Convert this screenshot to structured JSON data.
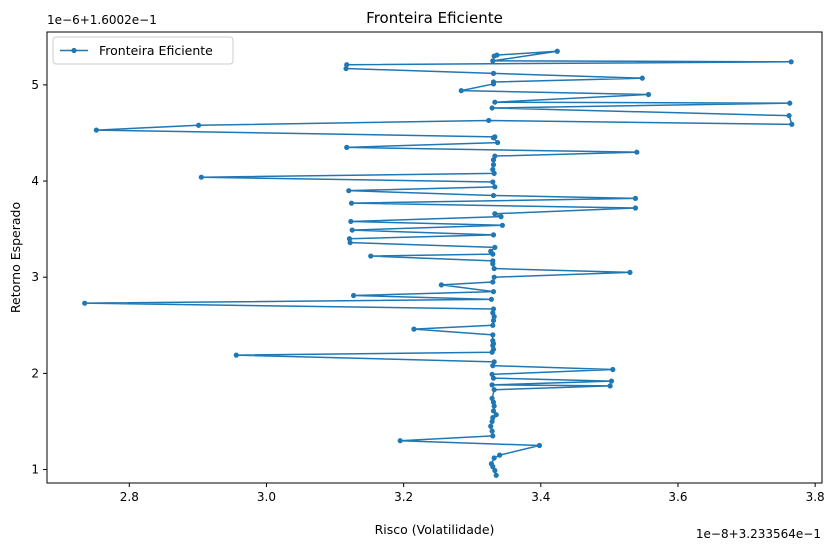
{
  "chart_data": {
    "type": "line",
    "title": "Fronteira Eficiente",
    "xlabel": "Risco (Volatilidade)",
    "ylabel": "Retorno Esperado",
    "x_offset_text": "1e−8+3.233564e−1",
    "y_offset_text": "1e−6+1.6002e−1",
    "xlim": [
      2.68,
      3.81
    ],
    "ylim": [
      0.86,
      5.55
    ],
    "x_ticks": [
      2.8,
      3.0,
      3.2,
      3.4,
      3.6,
      3.8
    ],
    "x_tick_labels": [
      "2.8",
      "3.0",
      "3.2",
      "3.4",
      "3.6",
      "3.8"
    ],
    "y_ticks": [
      1,
      2,
      3,
      4,
      5
    ],
    "y_tick_labels": [
      "1",
      "2",
      "3",
      "4",
      "5"
    ],
    "legend": {
      "position": "upper left"
    },
    "color": "#1f77b4",
    "series": [
      {
        "name": "Fronteira Eficiente",
        "marker": "circle",
        "points": [
          [
            3.335,
            0.94
          ],
          [
            3.333,
            0.99
          ],
          [
            3.33,
            1.03
          ],
          [
            3.328,
            1.06
          ],
          [
            3.332,
            1.12
          ],
          [
            3.34,
            1.15
          ],
          [
            3.398,
            1.25
          ],
          [
            3.195,
            1.3
          ],
          [
            3.33,
            1.35
          ],
          [
            3.329,
            1.4
          ],
          [
            3.327,
            1.45
          ],
          [
            3.329,
            1.5
          ],
          [
            3.33,
            1.54
          ],
          [
            3.335,
            1.57
          ],
          [
            3.331,
            1.61
          ],
          [
            3.332,
            1.66
          ],
          [
            3.331,
            1.7
          ],
          [
            3.329,
            1.74
          ],
          [
            3.332,
            1.83
          ],
          [
            3.501,
            1.87
          ],
          [
            3.329,
            1.88
          ],
          [
            3.503,
            1.92
          ],
          [
            3.331,
            1.95
          ],
          [
            3.329,
            1.99
          ],
          [
            3.505,
            2.04
          ],
          [
            3.33,
            2.08
          ],
          [
            3.332,
            2.12
          ],
          [
            2.956,
            2.19
          ],
          [
            3.329,
            2.22
          ],
          [
            3.331,
            2.25
          ],
          [
            3.33,
            2.29
          ],
          [
            3.331,
            2.31
          ],
          [
            3.33,
            2.34
          ],
          [
            3.33,
            2.4
          ],
          [
            3.215,
            2.46
          ],
          [
            3.33,
            2.5
          ],
          [
            3.331,
            2.55
          ],
          [
            3.332,
            2.59
          ],
          [
            3.33,
            2.63
          ],
          [
            3.331,
            2.67
          ],
          [
            2.735,
            2.73
          ],
          [
            3.328,
            2.77
          ],
          [
            3.127,
            2.81
          ],
          [
            3.331,
            2.85
          ],
          [
            3.255,
            2.92
          ],
          [
            3.33,
            2.95
          ],
          [
            3.332,
            3.0
          ],
          [
            3.53,
            3.05
          ],
          [
            3.332,
            3.09
          ],
          [
            3.33,
            3.14
          ],
          [
            3.33,
            3.17
          ],
          [
            3.152,
            3.22
          ],
          [
            3.33,
            3.24
          ],
          [
            3.327,
            3.27
          ],
          [
            3.333,
            3.31
          ],
          [
            3.122,
            3.36
          ],
          [
            3.121,
            3.4
          ],
          [
            3.331,
            3.44
          ],
          [
            3.125,
            3.49
          ],
          [
            3.344,
            3.54
          ],
          [
            3.123,
            3.58
          ],
          [
            3.342,
            3.63
          ],
          [
            3.333,
            3.66
          ],
          [
            3.538,
            3.72
          ],
          [
            3.124,
            3.77
          ],
          [
            3.538,
            3.82
          ],
          [
            3.331,
            3.85
          ],
          [
            3.12,
            3.9
          ],
          [
            3.333,
            3.94
          ],
          [
            3.33,
            3.99
          ],
          [
            2.905,
            4.04
          ],
          [
            3.332,
            4.08
          ],
          [
            3.33,
            4.12
          ],
          [
            3.331,
            4.17
          ],
          [
            3.331,
            4.22
          ],
          [
            3.333,
            4.26
          ],
          [
            3.54,
            4.3
          ],
          [
            3.117,
            4.35
          ],
          [
            3.337,
            4.4
          ],
          [
            3.331,
            4.45
          ],
          [
            3.333,
            4.46
          ],
          [
            2.752,
            4.53
          ],
          [
            2.901,
            4.58
          ],
          [
            3.324,
            4.63
          ],
          [
            3.766,
            4.59
          ],
          [
            3.762,
            4.68
          ],
          [
            3.329,
            4.76
          ],
          [
            3.763,
            4.81
          ],
          [
            3.333,
            4.82
          ],
          [
            3.557,
            4.9
          ],
          [
            3.284,
            4.94
          ],
          [
            3.331,
            5.01
          ],
          [
            3.331,
            5.03
          ],
          [
            3.548,
            5.07
          ],
          [
            3.331,
            5.12
          ],
          [
            3.116,
            5.17
          ],
          [
            3.117,
            5.21
          ],
          [
            3.765,
            5.24
          ],
          [
            3.33,
            5.25
          ],
          [
            3.424,
            5.35
          ],
          [
            3.336,
            5.31
          ],
          [
            3.332,
            5.3
          ]
        ]
      }
    ]
  }
}
